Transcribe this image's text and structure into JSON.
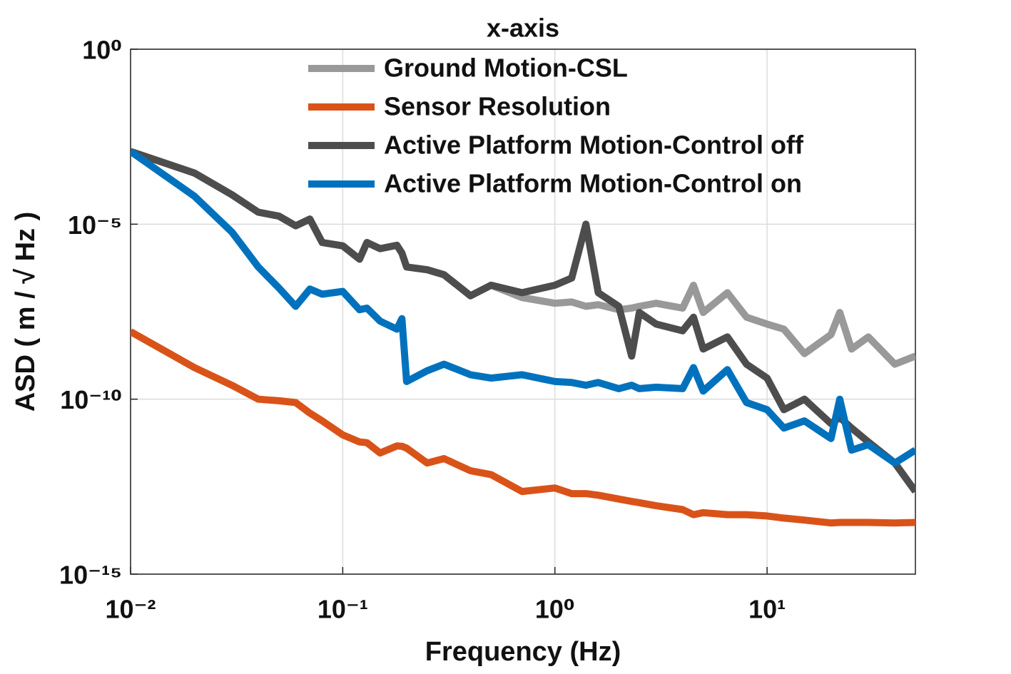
{
  "chart_data": {
    "type": "line",
    "title": "x-axis",
    "xlabel": "Frequency (Hz)",
    "ylabel": "ASD ( m / √ Hz )",
    "xscale": "log",
    "yscale": "log",
    "grid": true,
    "legend": "north",
    "xlim": [
      0.01,
      50
    ],
    "ylim": [
      1e-15,
      1
    ],
    "xticks": [
      {
        "value": 0.01,
        "label": "10⁻²"
      },
      {
        "value": 0.1,
        "label": "10⁻¹"
      },
      {
        "value": 1,
        "label": "10⁰"
      },
      {
        "value": 10,
        "label": "10¹"
      }
    ],
    "yticks": [
      {
        "value": 1e-15,
        "label": "10⁻¹⁵"
      },
      {
        "value": 1e-10,
        "label": "10⁻¹⁰"
      },
      {
        "value": 1e-05,
        "label": "10⁻⁵"
      },
      {
        "value": 1,
        "label": "10⁰"
      }
    ],
    "x": [
      0.01,
      0.02,
      0.03,
      0.04,
      0.05,
      0.06,
      0.07,
      0.08,
      0.1,
      0.12,
      0.13,
      0.15,
      0.18,
      0.19,
      0.2,
      0.25,
      0.3,
      0.4,
      0.5,
      0.7,
      1,
      1.2,
      1.4,
      1.6,
      2,
      2.3,
      2.5,
      3,
      4,
      4.5,
      5,
      6.5,
      8,
      10,
      12,
      15,
      20,
      22,
      25,
      30,
      40,
      50
    ],
    "series": [
      {
        "name": "Ground Motion-CSL",
        "color": "#999999",
        "values": [
          0.0012,
          0.00029,
          7e-05,
          2.2e-05,
          1.7e-05,
          9e-06,
          1.4e-05,
          3e-06,
          2.4e-06,
          1e-06,
          3e-06,
          2e-06,
          2.5e-06,
          1.5e-06,
          6e-07,
          5e-07,
          3.6e-07,
          9e-08,
          1.8e-07,
          8e-08,
          5.5e-08,
          6e-08,
          4.5e-08,
          5e-08,
          3.6e-08,
          4e-08,
          4.5e-08,
          5.5e-08,
          4e-08,
          1.8e-07,
          3e-08,
          1.1e-07,
          2.2e-08,
          1.4e-08,
          1e-08,
          2e-09,
          7e-09,
          3e-08,
          2.7e-09,
          6e-09,
          1e-09,
          1.7e-09
        ]
      },
      {
        "name": "Sensor Resolution",
        "color": "#d95319",
        "values": [
          8.5e-09,
          8e-10,
          2.5e-10,
          1e-10,
          9e-11,
          8e-11,
          4e-11,
          2.4e-11,
          9.5e-12,
          6e-12,
          5.7e-12,
          2.9e-12,
          4.6e-12,
          4.5e-12,
          4e-12,
          1.5e-12,
          2e-12,
          9e-13,
          7e-13,
          2.3e-13,
          2.9e-13,
          2e-13,
          2e-13,
          1.8e-13,
          1.4e-13,
          1.2e-13,
          1.1e-13,
          9e-14,
          7e-14,
          5e-14,
          5.7e-14,
          5e-14,
          5e-14,
          4.6e-14,
          4e-14,
          3.5e-14,
          2.9e-14,
          3e-14,
          3e-14,
          3e-14,
          2.9e-14,
          3e-14
        ]
      },
      {
        "name": "Active Platform Motion-Control off",
        "color": "#4d4d4d",
        "values": [
          0.0012,
          0.00029,
          7e-05,
          2.2e-05,
          1.7e-05,
          9e-06,
          1.4e-05,
          3e-06,
          2.4e-06,
          1e-06,
          3e-06,
          2e-06,
          2.5e-06,
          1.5e-06,
          6e-07,
          5e-07,
          3.6e-07,
          9e-08,
          1.8e-07,
          1.1e-07,
          1.8e-07,
          2.9e-07,
          1e-05,
          1.1e-07,
          4.5e-08,
          1.7e-09,
          3e-08,
          1.4e-08,
          9e-09,
          2.2e-08,
          2.7e-09,
          6e-09,
          1e-09,
          4e-10,
          5e-11,
          1e-10,
          2e-11,
          3e-11,
          1.5e-11,
          6e-12,
          1.5e-12,
          2.3e-13
        ]
      },
      {
        "name": "Active Platform Motion-Control on",
        "color": "#0072bd",
        "values": [
          0.0012,
          6.3e-05,
          6e-06,
          6e-07,
          1.5e-07,
          4.5e-08,
          1.4e-07,
          1e-07,
          1.2e-07,
          3.6e-08,
          4e-08,
          1.7e-08,
          1e-08,
          2e-08,
          3.2e-10,
          6.5e-10,
          1e-09,
          5e-10,
          4e-10,
          5e-10,
          3.2e-10,
          3e-10,
          2.5e-10,
          3e-10,
          2e-10,
          2.5e-10,
          2e-10,
          2.2e-10,
          2e-10,
          8e-10,
          1.7e-10,
          7e-10,
          8e-11,
          5e-11,
          1.5e-11,
          2.4e-11,
          7.5e-12,
          1e-10,
          3.5e-12,
          5e-12,
          1.5e-12,
          3.5e-12
        ]
      }
    ]
  }
}
